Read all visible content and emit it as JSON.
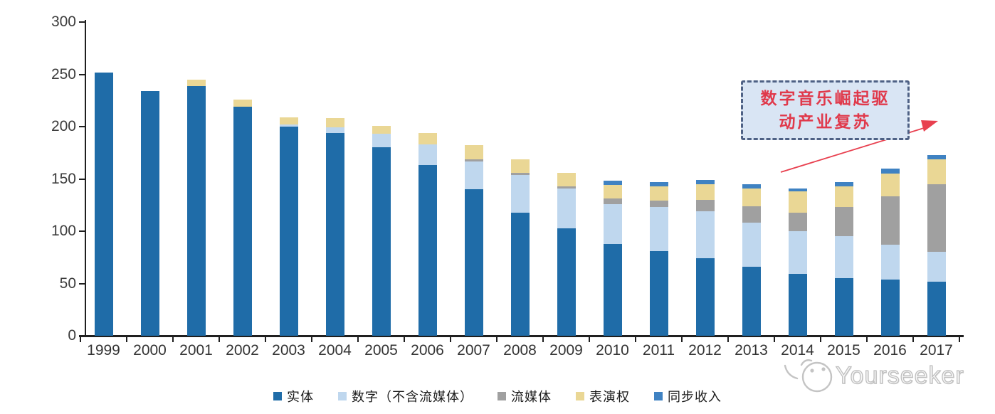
{
  "chart_data": {
    "type": "bar",
    "stacked": true,
    "title": "",
    "xlabel": "",
    "ylabel": "",
    "ylim": [
      0,
      300
    ],
    "yticks": [
      0,
      50,
      100,
      150,
      200,
      250,
      300
    ],
    "grid": false,
    "legend_position": "bottom",
    "categories": [
      "1999",
      "2000",
      "2001",
      "2002",
      "2003",
      "2004",
      "2005",
      "2006",
      "2007",
      "2008",
      "2009",
      "2010",
      "2011",
      "2012",
      "2013",
      "2014",
      "2015",
      "2016",
      "2017"
    ],
    "series": [
      {
        "key": "physical",
        "name": "实体",
        "color": "#1F6CA8",
        "values": [
          252,
          234,
          239,
          219,
          200,
          194,
          180,
          163,
          140,
          118,
          103,
          88,
          81,
          74,
          66,
          59,
          55,
          54,
          52
        ]
      },
      {
        "key": "digital",
        "name": "数字（不含流媒体）",
        "color": "#BFD7EE",
        "values": [
          0,
          0,
          0,
          0,
          2,
          5,
          13,
          20,
          27,
          36,
          38,
          38,
          42,
          45,
          42,
          41,
          40,
          33,
          28
        ]
      },
      {
        "key": "streaming",
        "name": "流媒体",
        "color": "#A0A0A0",
        "values": [
          0,
          0,
          0,
          0,
          0,
          0,
          0,
          0,
          2,
          2,
          2,
          5,
          6,
          11,
          16,
          18,
          28,
          46,
          65
        ]
      },
      {
        "key": "performance",
        "name": "表演权",
        "color": "#EAD795",
        "values": [
          0,
          0,
          6,
          7,
          7,
          9,
          8,
          11,
          13,
          13,
          13,
          13,
          14,
          15,
          17,
          20,
          20,
          22,
          24
        ]
      },
      {
        "key": "sync",
        "name": "同步收入",
        "color": "#3F82C2",
        "values": [
          0,
          0,
          0,
          0,
          0,
          0,
          0,
          0,
          0,
          0,
          0,
          4,
          4,
          4,
          4,
          3,
          4,
          5,
          4
        ]
      }
    ]
  },
  "annotation": {
    "text": "数字音乐崛起驱动产业复苏",
    "line1": "数字音乐崛起驱",
    "line2": "动产业复苏",
    "text_color": "#e0394b",
    "box_fill": "#d9e5f4",
    "box_border": "#4e6185",
    "arrow_color": "#e8404f"
  },
  "watermark": {
    "text": "Yourseeker"
  },
  "axis": {
    "line_color": "#1f1f1f",
    "label_color": "#3c3c3c"
  }
}
